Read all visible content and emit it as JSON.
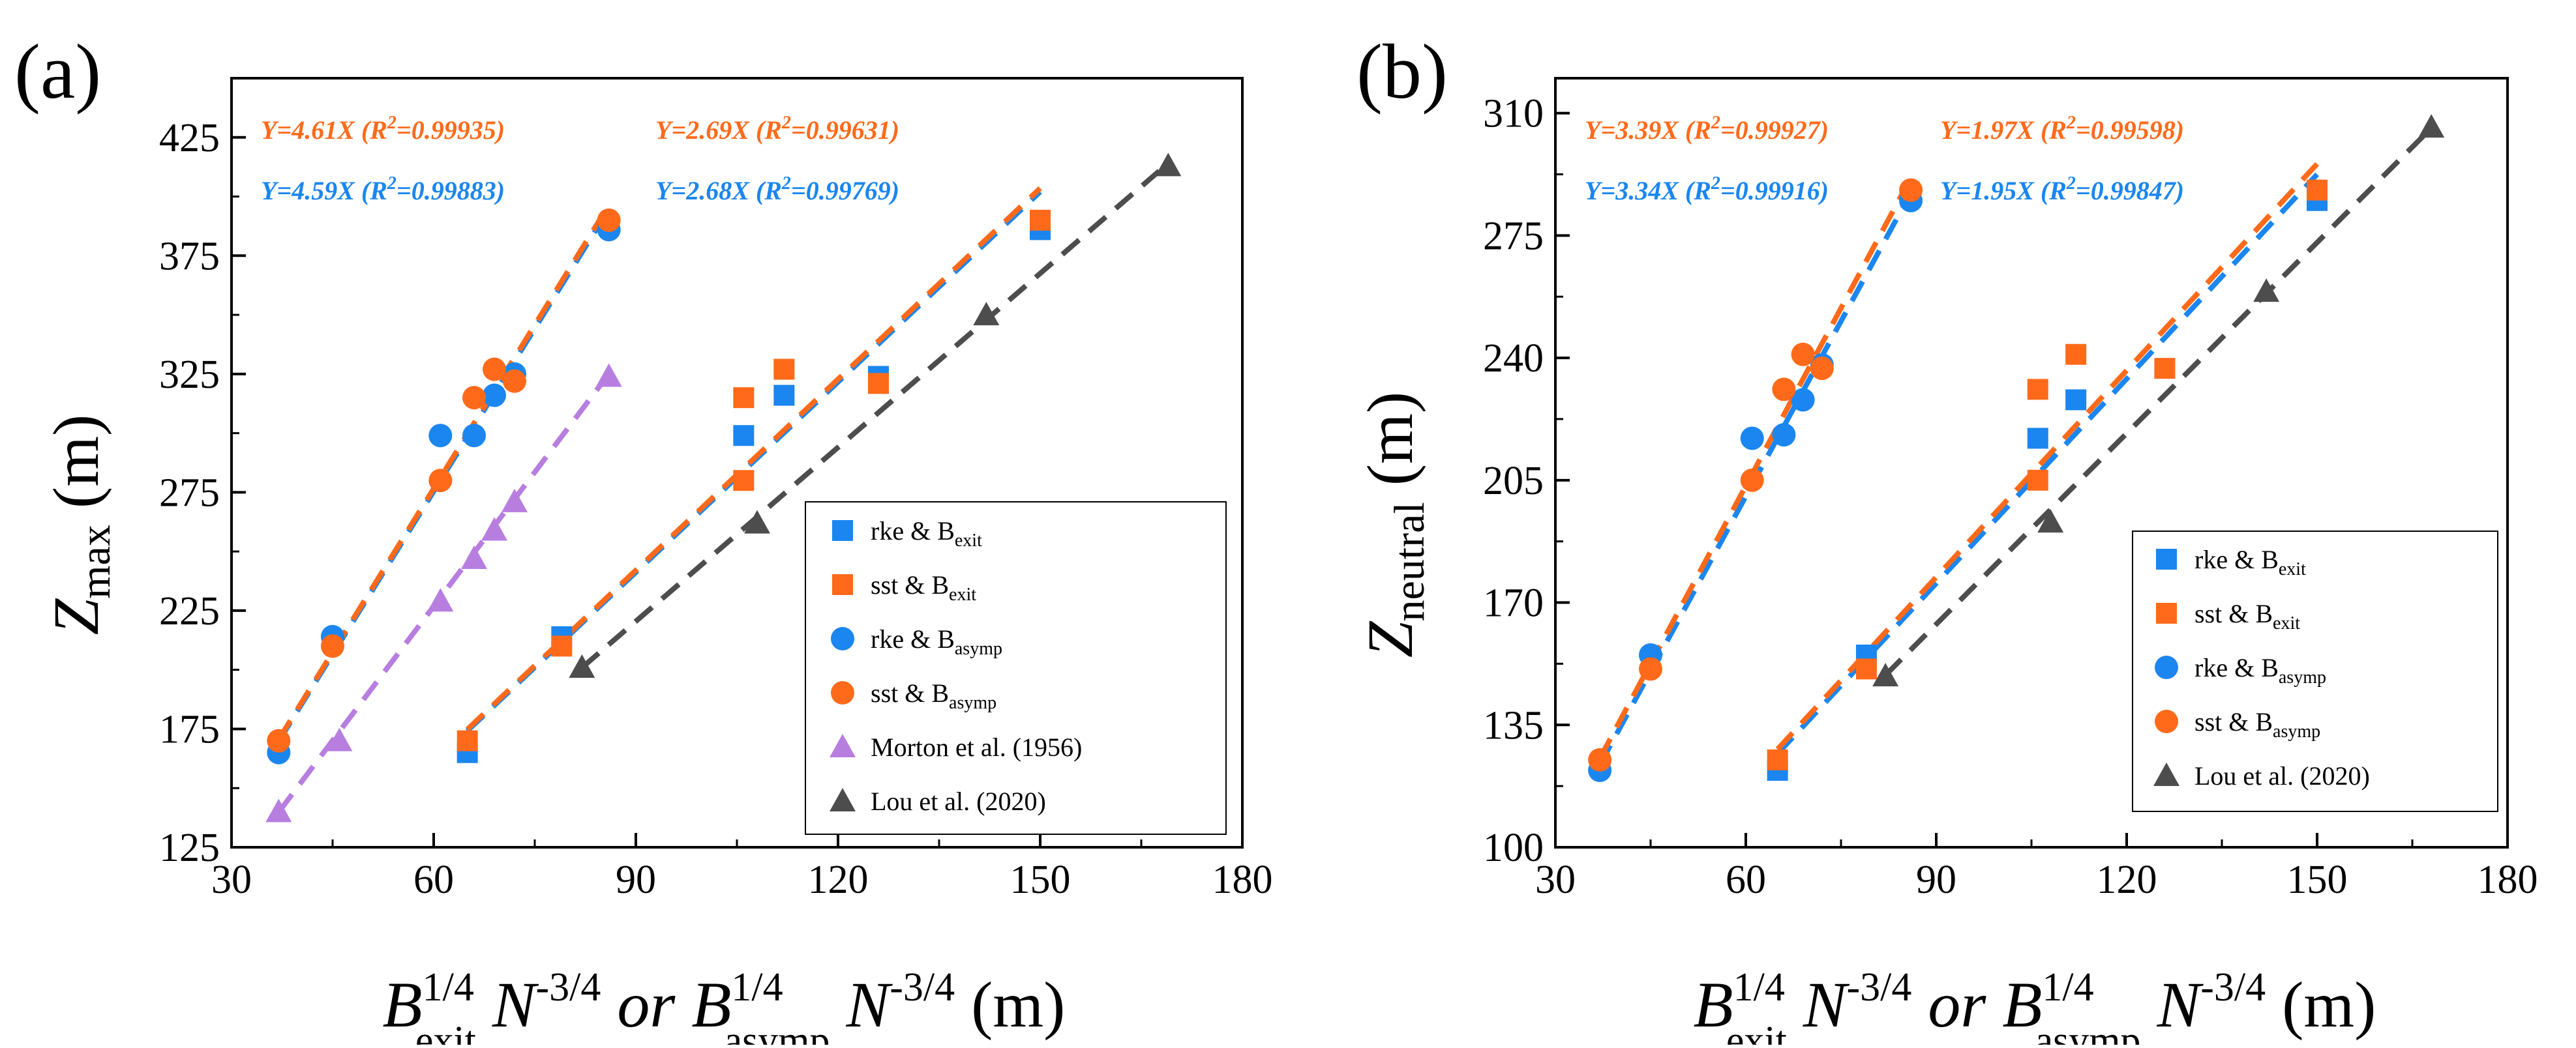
{
  "colors": {
    "rke": "#1b86ef",
    "sst": "#ff6a1a",
    "morton": "#b77ee0",
    "lou": "#4d4d4d"
  },
  "panels": {
    "a": {
      "label": "(a)",
      "ylabel": {
        "main": "Z",
        "sub": "max",
        "unit": " (m)"
      },
      "xtick_labels": [
        "30",
        "60",
        "90",
        "120",
        "150",
        "180"
      ],
      "ytick_labels": [
        "125",
        "175",
        "225",
        "275",
        "325",
        "375",
        "425"
      ],
      "annotations": {
        "sst_exit": {
          "pre": "Y=4.61X (R",
          "sup": "2",
          "post": "=0.99935)"
        },
        "rke_exit": {
          "pre": "Y=4.59X (R",
          "sup": "2",
          "post": "=0.99883)"
        },
        "sst_asymp": {
          "pre": "Y=2.69X (R",
          "sup": "2",
          "post": "=0.99631)"
        },
        "rke_asymp": {
          "pre": "Y=2.68X (R",
          "sup": "2",
          "post": "=0.99769)"
        }
      },
      "legend": {
        "rke_exit": {
          "base": "rke & B",
          "sub": "exit"
        },
        "sst_exit": {
          "base": "sst & B",
          "sub": "exit"
        },
        "rke_asymp": {
          "base": "rke & B",
          "sub": "asymp"
        },
        "sst_asymp": {
          "base": "sst & B",
          "sub": "asymp"
        },
        "morton": {
          "base": "Morton et al. (1956)",
          "sub": ""
        },
        "lou": {
          "base": "Lou et al. (2020)",
          "sub": ""
        }
      }
    },
    "b": {
      "label": "(b)",
      "ylabel": {
        "main": "Z",
        "sub": "neutral",
        "unit": " (m)"
      },
      "xtick_labels": [
        "30",
        "60",
        "90",
        "120",
        "150",
        "180"
      ],
      "ytick_labels": [
        "100",
        "135",
        "170",
        "205",
        "240",
        "275",
        "310"
      ],
      "annotations": {
        "sst_exit": {
          "pre": "Y=3.39X (R",
          "sup": "2",
          "post": "=0.99927)"
        },
        "rke_exit": {
          "pre": "Y=3.34X (R",
          "sup": "2",
          "post": "=0.99916)"
        },
        "sst_asymp": {
          "pre": "Y=1.97X (R",
          "sup": "2",
          "post": "=0.99598)"
        },
        "rke_asymp": {
          "pre": "Y=1.95X (R",
          "sup": "2",
          "post": "=0.99847)"
        }
      },
      "legend": {
        "rke_exit": {
          "base": "rke & B",
          "sub": "exit"
        },
        "sst_exit": {
          "base": "sst & B",
          "sub": "exit"
        },
        "rke_asymp": {
          "base": "rke & B",
          "sub": "asymp"
        },
        "sst_asymp": {
          "base": "sst & B",
          "sub": "asymp"
        },
        "lou": {
          "base": "Lou et al. (2020)",
          "sub": ""
        }
      }
    }
  },
  "xlabel": {
    "b1": "B",
    "sup1": "1/4",
    "sub1": "exit",
    "n1": " N",
    "nsup1": "-3/4",
    "or": " or ",
    "b2": "B",
    "sup2": "1/4",
    "sub2": "asymp",
    "n2": " N",
    "nsup2": "-3/4",
    "unit": " (m)"
  },
  "chart_data": [
    {
      "type": "scatter",
      "panel": "a",
      "xlim": [
        30,
        180
      ],
      "ylim": [
        125,
        450
      ],
      "xticks": [
        30,
        60,
        90,
        120,
        150,
        180
      ],
      "yticks": [
        125,
        175,
        225,
        275,
        325,
        375,
        425
      ],
      "legend_position": "bottom-right",
      "series": [
        {
          "key": "rke_exit",
          "marker": "square",
          "color": "#1b86ef",
          "points": [
            [
              65,
              165
            ],
            [
              79,
              214
            ],
            [
              106,
              299
            ],
            [
              112,
              316
            ],
            [
              126,
              324
            ],
            [
              150,
              386
            ]
          ]
        },
        {
          "key": "sst_exit",
          "marker": "square",
          "color": "#ff6a1a",
          "points": [
            [
              65,
              170
            ],
            [
              79,
              210
            ],
            [
              106,
              280
            ],
            [
              106,
              315
            ],
            [
              112,
              327
            ],
            [
              126,
              321
            ],
            [
              150,
              390
            ]
          ]
        },
        {
          "key": "rke_asymp",
          "marker": "circle",
          "color": "#1b86ef",
          "points": [
            [
              37,
              165
            ],
            [
              45,
              214
            ],
            [
              61,
              299
            ],
            [
              66,
              299
            ],
            [
              69,
              316
            ],
            [
              72,
              325
            ],
            [
              86,
              386
            ]
          ]
        },
        {
          "key": "sst_asymp",
          "marker": "circle",
          "color": "#ff6a1a",
          "points": [
            [
              37,
              170
            ],
            [
              45,
              210
            ],
            [
              61,
              280
            ],
            [
              66,
              315
            ],
            [
              69,
              327
            ],
            [
              72,
              322
            ],
            [
              86,
              390
            ]
          ]
        },
        {
          "key": "morton",
          "marker": "triangle",
          "color": "#b77ee0",
          "points": [
            [
              37,
              140
            ],
            [
              46,
              170
            ],
            [
              61,
              229
            ],
            [
              66,
              247
            ],
            [
              69,
              259
            ],
            [
              72,
              271
            ],
            [
              86,
              324
            ]
          ]
        },
        {
          "key": "lou",
          "marker": "triangle",
          "color": "#4d4d4d",
          "points": [
            [
              82,
              201
            ],
            [
              108,
              262
            ],
            [
              142,
              350
            ],
            [
              169,
              413
            ]
          ]
        }
      ],
      "fits": [
        {
          "key": "rke_exit_fit",
          "color": "#1b86ef",
          "slope": 4.59,
          "x": [
            37,
            86
          ]
        },
        {
          "key": "sst_exit_fit",
          "color": "#ff6a1a",
          "slope": 4.61,
          "x": [
            37,
            86
          ]
        },
        {
          "key": "rke_asymp_fit",
          "color": "#1b86ef",
          "slope": 2.68,
          "x": [
            65,
            150
          ]
        },
        {
          "key": "sst_asymp_fit",
          "color": "#ff6a1a",
          "slope": 2.69,
          "x": [
            65,
            150
          ]
        },
        {
          "key": "morton_fit",
          "color": "#b77ee0",
          "slope": 3.78,
          "x": [
            37,
            86
          ]
        },
        {
          "key": "lou_fit",
          "color": "#4d4d4d",
          "slope": 2.45,
          "x": [
            82,
            169
          ]
        }
      ]
    },
    {
      "type": "scatter",
      "panel": "b",
      "xlim": [
        30,
        180
      ],
      "ylim": [
        100,
        320
      ],
      "xticks": [
        30,
        60,
        90,
        120,
        150,
        180
      ],
      "yticks": [
        100,
        135,
        170,
        205,
        240,
        275,
        310
      ],
      "legend_position": "bottom-right",
      "series": [
        {
          "key": "rke_exit",
          "marker": "square",
          "color": "#1b86ef",
          "points": [
            [
              65,
              122
            ],
            [
              79,
              155
            ],
            [
              106,
              217
            ],
            [
              112,
              228
            ],
            [
              150,
              285
            ]
          ]
        },
        {
          "key": "sst_exit",
          "marker": "square",
          "color": "#ff6a1a",
          "points": [
            [
              65,
              125
            ],
            [
              79,
              151
            ],
            [
              106,
              205
            ],
            [
              106,
              231
            ],
            [
              112,
              241
            ],
            [
              126,
              237
            ],
            [
              150,
              288
            ]
          ]
        },
        {
          "key": "rke_asymp",
          "marker": "circle",
          "color": "#1b86ef",
          "points": [
            [
              37,
              122
            ],
            [
              45,
              155
            ],
            [
              61,
              217
            ],
            [
              66,
              218
            ],
            [
              69,
              228
            ],
            [
              72,
              238
            ],
            [
              86,
              285
            ]
          ]
        },
        {
          "key": "sst_asymp",
          "marker": "circle",
          "color": "#ff6a1a",
          "points": [
            [
              37,
              125
            ],
            [
              45,
              151
            ],
            [
              61,
              205
            ],
            [
              66,
              231
            ],
            [
              69,
              241
            ],
            [
              72,
              237
            ],
            [
              86,
              288
            ]
          ]
        },
        {
          "key": "lou",
          "marker": "triangle",
          "color": "#4d4d4d",
          "points": [
            [
              82,
              149
            ],
            [
              108,
              193
            ],
            [
              142,
              259
            ],
            [
              168,
              306
            ]
          ]
        }
      ],
      "fits": [
        {
          "key": "rke_exit_fit",
          "color": "#1b86ef",
          "slope": 3.34,
          "x": [
            37,
            86
          ]
        },
        {
          "key": "sst_exit_fit",
          "color": "#ff6a1a",
          "slope": 3.39,
          "x": [
            37,
            86
          ]
        },
        {
          "key": "rke_asymp_fit",
          "color": "#1b86ef",
          "slope": 1.95,
          "x": [
            65,
            150
          ]
        },
        {
          "key": "sst_asymp_fit",
          "color": "#ff6a1a",
          "slope": 1.97,
          "x": [
            65,
            150
          ]
        },
        {
          "key": "lou_fit",
          "color": "#4d4d4d",
          "slope": 1.82,
          "x": [
            82,
            168
          ]
        }
      ]
    }
  ]
}
